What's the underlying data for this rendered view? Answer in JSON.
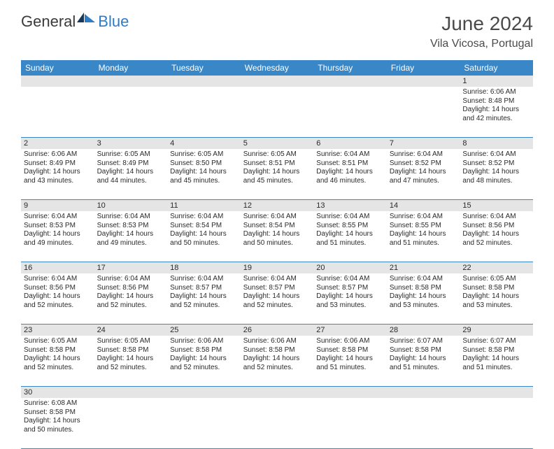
{
  "logo": {
    "general": "General",
    "blue": "Blue"
  },
  "title": "June 2024",
  "location": "Vila Vicosa, Portugal",
  "dayNames": [
    "Sunday",
    "Monday",
    "Tuesday",
    "Wednesday",
    "Thursday",
    "Friday",
    "Saturday"
  ],
  "colors": {
    "headerBlue": "#3a87c8",
    "logoBlue": "#2d7cc5",
    "numRowBg": "#e5e5e5",
    "text": "#2a2a2a"
  },
  "weeks": [
    {
      "nums": [
        "",
        "",
        "",
        "",
        "",
        "",
        "1"
      ],
      "cells": [
        null,
        null,
        null,
        null,
        null,
        null,
        {
          "sunrise": "Sunrise: 6:06 AM",
          "sunset": "Sunset: 8:48 PM",
          "day1": "Daylight: 14 hours",
          "day2": "and 42 minutes."
        }
      ]
    },
    {
      "nums": [
        "2",
        "3",
        "4",
        "5",
        "6",
        "7",
        "8"
      ],
      "cells": [
        {
          "sunrise": "Sunrise: 6:06 AM",
          "sunset": "Sunset: 8:49 PM",
          "day1": "Daylight: 14 hours",
          "day2": "and 43 minutes."
        },
        {
          "sunrise": "Sunrise: 6:05 AM",
          "sunset": "Sunset: 8:49 PM",
          "day1": "Daylight: 14 hours",
          "day2": "and 44 minutes."
        },
        {
          "sunrise": "Sunrise: 6:05 AM",
          "sunset": "Sunset: 8:50 PM",
          "day1": "Daylight: 14 hours",
          "day2": "and 45 minutes."
        },
        {
          "sunrise": "Sunrise: 6:05 AM",
          "sunset": "Sunset: 8:51 PM",
          "day1": "Daylight: 14 hours",
          "day2": "and 45 minutes."
        },
        {
          "sunrise": "Sunrise: 6:04 AM",
          "sunset": "Sunset: 8:51 PM",
          "day1": "Daylight: 14 hours",
          "day2": "and 46 minutes."
        },
        {
          "sunrise": "Sunrise: 6:04 AM",
          "sunset": "Sunset: 8:52 PM",
          "day1": "Daylight: 14 hours",
          "day2": "and 47 minutes."
        },
        {
          "sunrise": "Sunrise: 6:04 AM",
          "sunset": "Sunset: 8:52 PM",
          "day1": "Daylight: 14 hours",
          "day2": "and 48 minutes."
        }
      ]
    },
    {
      "nums": [
        "9",
        "10",
        "11",
        "12",
        "13",
        "14",
        "15"
      ],
      "cells": [
        {
          "sunrise": "Sunrise: 6:04 AM",
          "sunset": "Sunset: 8:53 PM",
          "day1": "Daylight: 14 hours",
          "day2": "and 49 minutes."
        },
        {
          "sunrise": "Sunrise: 6:04 AM",
          "sunset": "Sunset: 8:53 PM",
          "day1": "Daylight: 14 hours",
          "day2": "and 49 minutes."
        },
        {
          "sunrise": "Sunrise: 6:04 AM",
          "sunset": "Sunset: 8:54 PM",
          "day1": "Daylight: 14 hours",
          "day2": "and 50 minutes."
        },
        {
          "sunrise": "Sunrise: 6:04 AM",
          "sunset": "Sunset: 8:54 PM",
          "day1": "Daylight: 14 hours",
          "day2": "and 50 minutes."
        },
        {
          "sunrise": "Sunrise: 6:04 AM",
          "sunset": "Sunset: 8:55 PM",
          "day1": "Daylight: 14 hours",
          "day2": "and 51 minutes."
        },
        {
          "sunrise": "Sunrise: 6:04 AM",
          "sunset": "Sunset: 8:55 PM",
          "day1": "Daylight: 14 hours",
          "day2": "and 51 minutes."
        },
        {
          "sunrise": "Sunrise: 6:04 AM",
          "sunset": "Sunset: 8:56 PM",
          "day1": "Daylight: 14 hours",
          "day2": "and 52 minutes."
        }
      ]
    },
    {
      "nums": [
        "16",
        "17",
        "18",
        "19",
        "20",
        "21",
        "22"
      ],
      "cells": [
        {
          "sunrise": "Sunrise: 6:04 AM",
          "sunset": "Sunset: 8:56 PM",
          "day1": "Daylight: 14 hours",
          "day2": "and 52 minutes."
        },
        {
          "sunrise": "Sunrise: 6:04 AM",
          "sunset": "Sunset: 8:56 PM",
          "day1": "Daylight: 14 hours",
          "day2": "and 52 minutes."
        },
        {
          "sunrise": "Sunrise: 6:04 AM",
          "sunset": "Sunset: 8:57 PM",
          "day1": "Daylight: 14 hours",
          "day2": "and 52 minutes."
        },
        {
          "sunrise": "Sunrise: 6:04 AM",
          "sunset": "Sunset: 8:57 PM",
          "day1": "Daylight: 14 hours",
          "day2": "and 52 minutes."
        },
        {
          "sunrise": "Sunrise: 6:04 AM",
          "sunset": "Sunset: 8:57 PM",
          "day1": "Daylight: 14 hours",
          "day2": "and 53 minutes."
        },
        {
          "sunrise": "Sunrise: 6:04 AM",
          "sunset": "Sunset: 8:58 PM",
          "day1": "Daylight: 14 hours",
          "day2": "and 53 minutes."
        },
        {
          "sunrise": "Sunrise: 6:05 AM",
          "sunset": "Sunset: 8:58 PM",
          "day1": "Daylight: 14 hours",
          "day2": "and 53 minutes."
        }
      ]
    },
    {
      "nums": [
        "23",
        "24",
        "25",
        "26",
        "27",
        "28",
        "29"
      ],
      "cells": [
        {
          "sunrise": "Sunrise: 6:05 AM",
          "sunset": "Sunset: 8:58 PM",
          "day1": "Daylight: 14 hours",
          "day2": "and 52 minutes."
        },
        {
          "sunrise": "Sunrise: 6:05 AM",
          "sunset": "Sunset: 8:58 PM",
          "day1": "Daylight: 14 hours",
          "day2": "and 52 minutes."
        },
        {
          "sunrise": "Sunrise: 6:06 AM",
          "sunset": "Sunset: 8:58 PM",
          "day1": "Daylight: 14 hours",
          "day2": "and 52 minutes."
        },
        {
          "sunrise": "Sunrise: 6:06 AM",
          "sunset": "Sunset: 8:58 PM",
          "day1": "Daylight: 14 hours",
          "day2": "and 52 minutes."
        },
        {
          "sunrise": "Sunrise: 6:06 AM",
          "sunset": "Sunset: 8:58 PM",
          "day1": "Daylight: 14 hours",
          "day2": "and 51 minutes."
        },
        {
          "sunrise": "Sunrise: 6:07 AM",
          "sunset": "Sunset: 8:58 PM",
          "day1": "Daylight: 14 hours",
          "day2": "and 51 minutes."
        },
        {
          "sunrise": "Sunrise: 6:07 AM",
          "sunset": "Sunset: 8:58 PM",
          "day1": "Daylight: 14 hours",
          "day2": "and 51 minutes."
        }
      ]
    },
    {
      "nums": [
        "30",
        "",
        "",
        "",
        "",
        "",
        ""
      ],
      "cells": [
        {
          "sunrise": "Sunrise: 6:08 AM",
          "sunset": "Sunset: 8:58 PM",
          "day1": "Daylight: 14 hours",
          "day2": "and 50 minutes."
        },
        null,
        null,
        null,
        null,
        null,
        null
      ]
    }
  ]
}
